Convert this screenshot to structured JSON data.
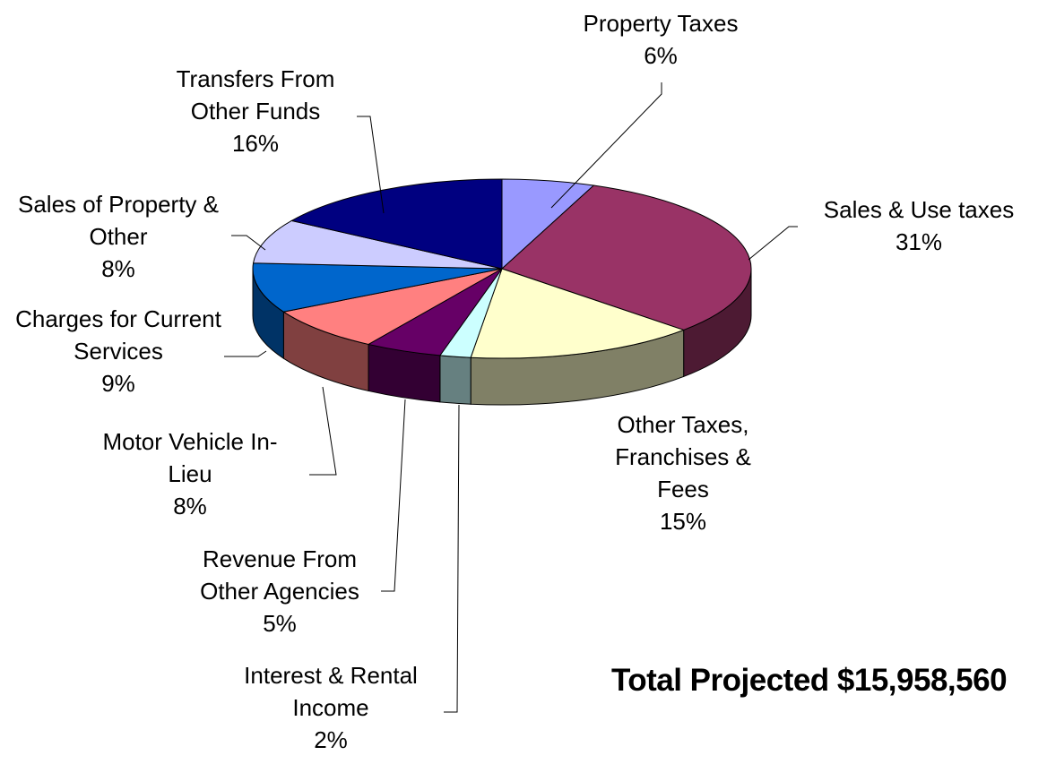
{
  "chart_data": {
    "type": "pie",
    "categories": [
      "Property Taxes",
      "Sales & Use taxes",
      "Other Taxes, Franchises & Fees",
      "Interest & Rental Income",
      "Revenue From Other Agencies",
      "Motor Vehicle In-Lieu",
      "Charges for Current Services",
      "Sales of Property & Other",
      "Transfers From Other Funds"
    ],
    "values": [
      6,
      31,
      15,
      2,
      5,
      8,
      9,
      8,
      16
    ],
    "value_labels": [
      "6%",
      "31%",
      "15%",
      "2%",
      "5%",
      "8%",
      "9%",
      "8%",
      "16%"
    ],
    "colors": [
      "#9999ff",
      "#993366",
      "#ffffcc",
      "#ccffff",
      "#660066",
      "#ff8080",
      "#0066cc",
      "#ccccff",
      "#000080"
    ],
    "annotation": "Total Projected $15,958,560"
  }
}
